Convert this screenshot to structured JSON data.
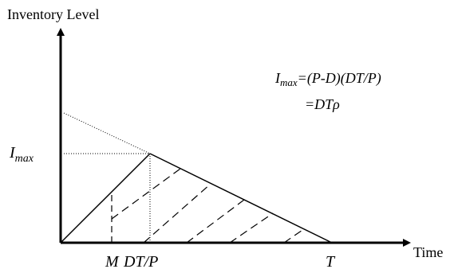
{
  "diagram": {
    "y_axis_label": "Inventory Level",
    "x_axis_label": "Time",
    "imax_label": {
      "main": "I",
      "sub": "max"
    },
    "tick_labels": {
      "m": "M",
      "dtp": "DT/P",
      "t": "T"
    },
    "formula": {
      "line1": {
        "lhs_main": "I",
        "lhs_sub": "max",
        "rhs": "=(P-D)(DT/P)"
      },
      "line2": {
        "prefix": "=DT",
        "rho": "ρ"
      }
    }
  }
}
